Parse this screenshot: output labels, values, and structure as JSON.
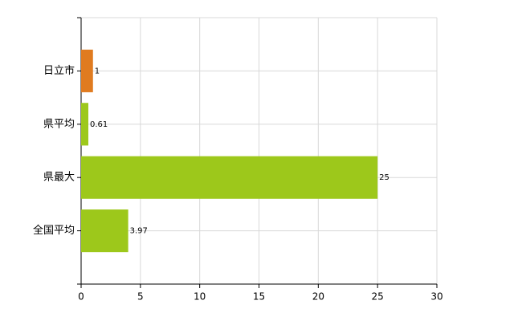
{
  "chart_data": {
    "type": "hbar",
    "categories": [
      "日立市",
      "県平均",
      "県最大",
      "全国平均"
    ],
    "values": [
      1,
      0.61,
      25,
      3.97
    ],
    "colors": [
      "#e07b20",
      "#9dc81b",
      "#9dc81b",
      "#9dc81b"
    ],
    "xlim": [
      0,
      30
    ],
    "xticks": [
      0,
      5,
      10,
      15,
      20,
      25,
      30
    ],
    "grid": true
  }
}
